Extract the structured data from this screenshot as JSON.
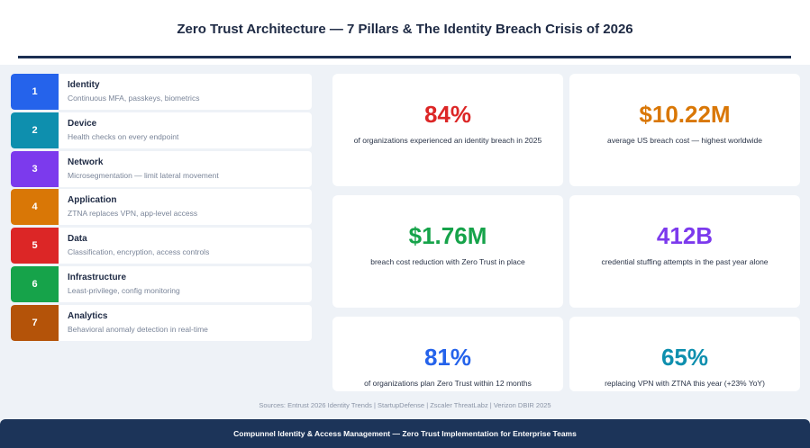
{
  "header": {
    "title": "Zero Trust Architecture — 7 Pillars & The Identity Breach Crisis of 2026"
  },
  "pillars": [
    {
      "num": "1",
      "name": "Identity",
      "desc": "Continuous MFA, passkeys, biometrics",
      "color": "#2563eb"
    },
    {
      "num": "2",
      "name": "Device",
      "desc": "Health checks on every endpoint",
      "color": "#0e8fae"
    },
    {
      "num": "3",
      "name": "Network",
      "desc": "Microsegmentation — limit lateral movement",
      "color": "#7c3aed"
    },
    {
      "num": "4",
      "name": "Application",
      "desc": "ZTNA replaces VPN, app-level access",
      "color": "#d97706"
    },
    {
      "num": "5",
      "name": "Data",
      "desc": "Classification, encryption, access controls",
      "color": "#dc2626"
    },
    {
      "num": "6",
      "name": "Infrastructure",
      "desc": "Least-privilege, config monitoring",
      "color": "#16a34a"
    },
    {
      "num": "7",
      "name": "Analytics",
      "desc": "Behavioral anomaly detection in real-time",
      "color": "#b45309"
    }
  ],
  "stats": [
    {
      "value": "84%",
      "caption": "of organizations experienced an identity breach in 2025",
      "color": "#dc2626"
    },
    {
      "value": "$10.22M",
      "caption": "average US breach cost — highest worldwide",
      "color": "#d97706"
    },
    {
      "value": "$1.76M",
      "caption": "breach cost reduction with Zero Trust in place",
      "color": "#16a34a"
    },
    {
      "value": "412B",
      "caption": "credential stuffing attempts in the past year alone",
      "color": "#7c3aed"
    },
    {
      "value": "81%",
      "caption": "of organizations plan Zero Trust within 12 months",
      "color": "#2563eb"
    },
    {
      "value": "65%",
      "caption": "replacing VPN with ZTNA this year (+23% YoY)",
      "color": "#0e8fae"
    }
  ],
  "sources": "Sources: Entrust 2026 Identity Trends | StartupDefense | Zscaler ThreatLabz | Verizon DBIR 2025",
  "footer": "Compunnel Identity & Access Management — Zero Trust Implementation for Enterprise Teams"
}
